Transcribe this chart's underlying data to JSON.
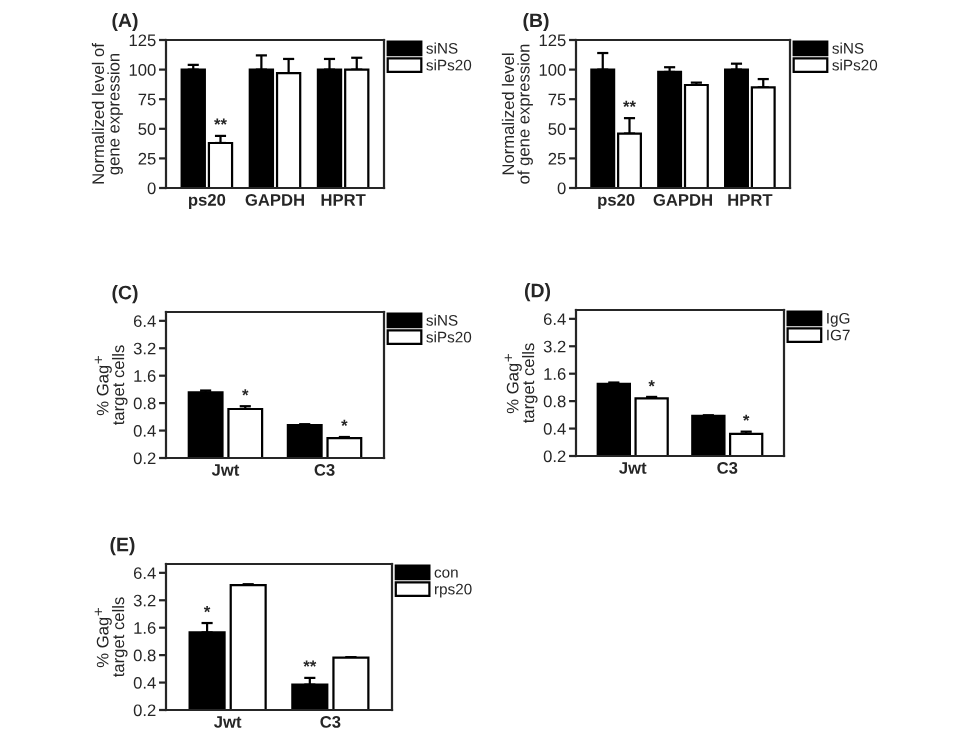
{
  "chart_data": [
    {
      "type": "bar",
      "title": "(A)",
      "ylabel": "Normalized level of\ngene expression",
      "categories": [
        "ps20",
        "GAPDH",
        "HPRT"
      ],
      "series": [
        {
          "name": "siNS",
          "color": "#000000",
          "values": [
            100,
            100,
            100
          ],
          "errors": [
            [
              100,
              104
            ],
            [
              100,
              112
            ],
            [
              100,
              109
            ]
          ]
        },
        {
          "name": "siPs20",
          "color": "#ffffff",
          "values": [
            38,
            97,
            100
          ],
          "errors": [
            [
              38,
              44
            ],
            [
              97,
              109
            ],
            [
              100,
              110
            ]
          ]
        }
      ],
      "ylim": [
        0,
        125
      ],
      "yticks": [
        0,
        25,
        50,
        75,
        100,
        125
      ],
      "legend": "top right",
      "annotations": [
        {
          "text": "**",
          "x": "ps20",
          "y": 46
        }
      ]
    },
    {
      "type": "bar",
      "title": "(B)",
      "ylabel": "Normalized level\nof gene expression",
      "categories": [
        "ps20",
        "GAPDH",
        "HPRT"
      ],
      "series": [
        {
          "name": "siNS",
          "color": "#000000",
          "values": [
            100,
            98,
            100
          ],
          "errors": [
            [
              100,
              114
            ],
            [
              98,
              102
            ],
            [
              100,
              105
            ]
          ]
        },
        {
          "name": "siPs20",
          "color": "#ffffff",
          "values": [
            46,
            87,
            85
          ],
          "errors": [
            [
              46,
              59
            ],
            [
              87,
              89
            ],
            [
              85,
              92
            ]
          ]
        }
      ],
      "ylim": [
        0,
        125
      ],
      "yticks": [
        0,
        25,
        50,
        75,
        100,
        125
      ],
      "legend": "top right",
      "annotations": [
        {
          "text": "**",
          "x": "ps20",
          "y": 61
        }
      ]
    },
    {
      "type": "bar",
      "title": "(C)",
      "ylabel": "% Gag$^{+}$\ntarget cells",
      "categories": [
        "Jwt",
        "C3"
      ],
      "series": [
        {
          "name": "siNS",
          "color": "#000000",
          "values": [
            1.05,
            0.46
          ],
          "errors": [
            [
              1.05,
              1.1
            ],
            [
              0.46,
              0.47
            ]
          ]
        },
        {
          "name": "siPs20",
          "color": "#ffffff",
          "values": [
            0.69,
            0.33
          ],
          "errors": [
            [
              0.69,
              0.74
            ],
            [
              0.33,
              0.34
            ]
          ]
        }
      ],
      "log": true,
      "ylim": [
        0.2,
        8
      ],
      "yticks": [
        0.2,
        0.4,
        0.8,
        1.6,
        3.2,
        6.4
      ],
      "legend": "top right",
      "annotations": [
        {
          "text": "*",
          "x": "Jwt",
          "y": 0.78
        },
        {
          "text": "*",
          "x": "C3",
          "y": 0.36
        }
      ]
    },
    {
      "type": "bar",
      "title": "(D)",
      "ylabel": "% Gag$^{+}$\ntarget cells",
      "categories": [
        "Jwt",
        "C3"
      ],
      "series": [
        {
          "name": "IgG",
          "color": "#000000",
          "values": [
            1.24,
            0.55
          ],
          "errors": [
            [
              1.24,
              1.28
            ],
            [
              0.55,
              0.56
            ]
          ]
        },
        {
          "name": "IG7",
          "color": "#ffffff",
          "values": [
            0.86,
            0.35
          ],
          "errors": [
            [
              0.86,
              0.89
            ],
            [
              0.35,
              0.37
            ]
          ]
        }
      ],
      "log": true,
      "ylim": [
        0.2,
        8
      ],
      "yticks": [
        0.2,
        0.4,
        0.8,
        1.6,
        3.2,
        6.4
      ],
      "legend": "top right",
      "annotations": [
        {
          "text": "*",
          "x": "Jwt",
          "y": 0.93
        },
        {
          "text": "*",
          "x": "C3",
          "y": 0.39
        }
      ]
    },
    {
      "type": "bar",
      "title": "(E)",
      "ylabel": "% Gag$^{+}$\ntarget cells",
      "categories": [
        "Jwt",
        "C3"
      ],
      "series": [
        {
          "name": "con",
          "color": "#000000",
          "values": [
            1.42,
            0.38
          ],
          "errors": [
            [
              1.42,
              1.8
            ],
            [
              0.38,
              0.45
            ]
          ]
        },
        {
          "name": "rps20",
          "color": "#ffffff",
          "values": [
            4.7,
            0.75
          ],
          "errors": [
            [
              4.7,
              4.8
            ],
            [
              0.75,
              0.76
            ]
          ]
        }
      ],
      "log": true,
      "ylim": [
        0.2,
        8
      ],
      "yticks": [
        0.2,
        0.4,
        0.8,
        1.6,
        3.2,
        6.4
      ],
      "legend": "top right",
      "annotations": [
        {
          "text": "*",
          "x": "Jwt",
          "y": 1.9
        },
        {
          "text": "**",
          "x": "C3",
          "y": 0.48
        }
      ]
    }
  ]
}
